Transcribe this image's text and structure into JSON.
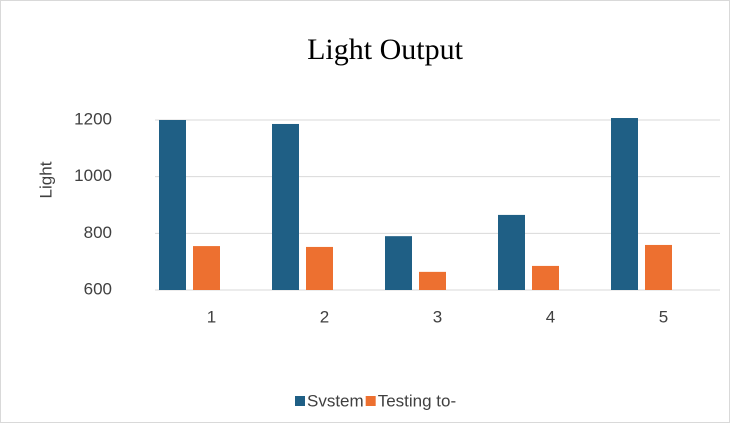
{
  "chart_data": {
    "type": "bar",
    "title": "Light Output",
    "ylabel": "Light",
    "categories": [
      "1",
      "2",
      "3",
      "4",
      "5"
    ],
    "series": [
      {
        "name": "Svstem",
        "color": "#1f5f85",
        "values": [
          1200,
          1186,
          790,
          865,
          1207
        ]
      },
      {
        "name": "Testing to-",
        "color": "#ed7030",
        "values": [
          755,
          752,
          664,
          685,
          759
        ]
      }
    ],
    "ylim": [
      600,
      1200
    ],
    "yticks": [
      600,
      800,
      1000,
      1200
    ],
    "grid": true
  }
}
